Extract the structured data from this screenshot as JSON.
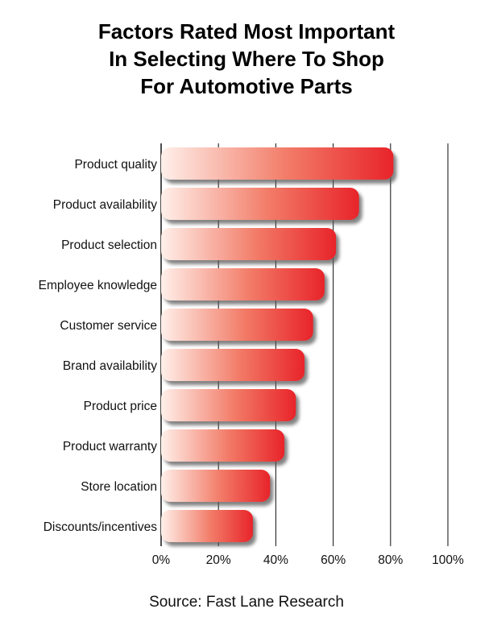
{
  "title_lines": [
    "Factors Rated Most Important",
    "In Selecting Where To Shop",
    "For Automotive Parts"
  ],
  "source": "Source: Fast Lane Research",
  "chart_data": {
    "type": "bar",
    "orientation": "horizontal",
    "title": "Factors Rated Most Important In Selecting Where To Shop For Automotive Parts",
    "categories": [
      "Product quality",
      "Product availability",
      "Product selection",
      "Employee knowledge",
      "Customer service",
      "Brand availability",
      "Product price",
      "Product warranty",
      "Store location",
      "Discounts/incentives"
    ],
    "values": [
      81,
      69,
      61,
      57,
      53,
      50,
      47,
      43,
      38,
      32
    ],
    "unit": "%",
    "xlim": [
      0,
      100
    ],
    "x_ticks": [
      "0%",
      "20%",
      "40%",
      "60%",
      "80%",
      "100%"
    ],
    "x_tick_values": [
      0,
      20,
      40,
      60,
      80,
      100
    ],
    "grid": true,
    "colors": {
      "bar_start": "#fff0ea",
      "bar_end": "#e8242a",
      "shadow": "#5a5a5a",
      "grid": "#222222"
    }
  }
}
